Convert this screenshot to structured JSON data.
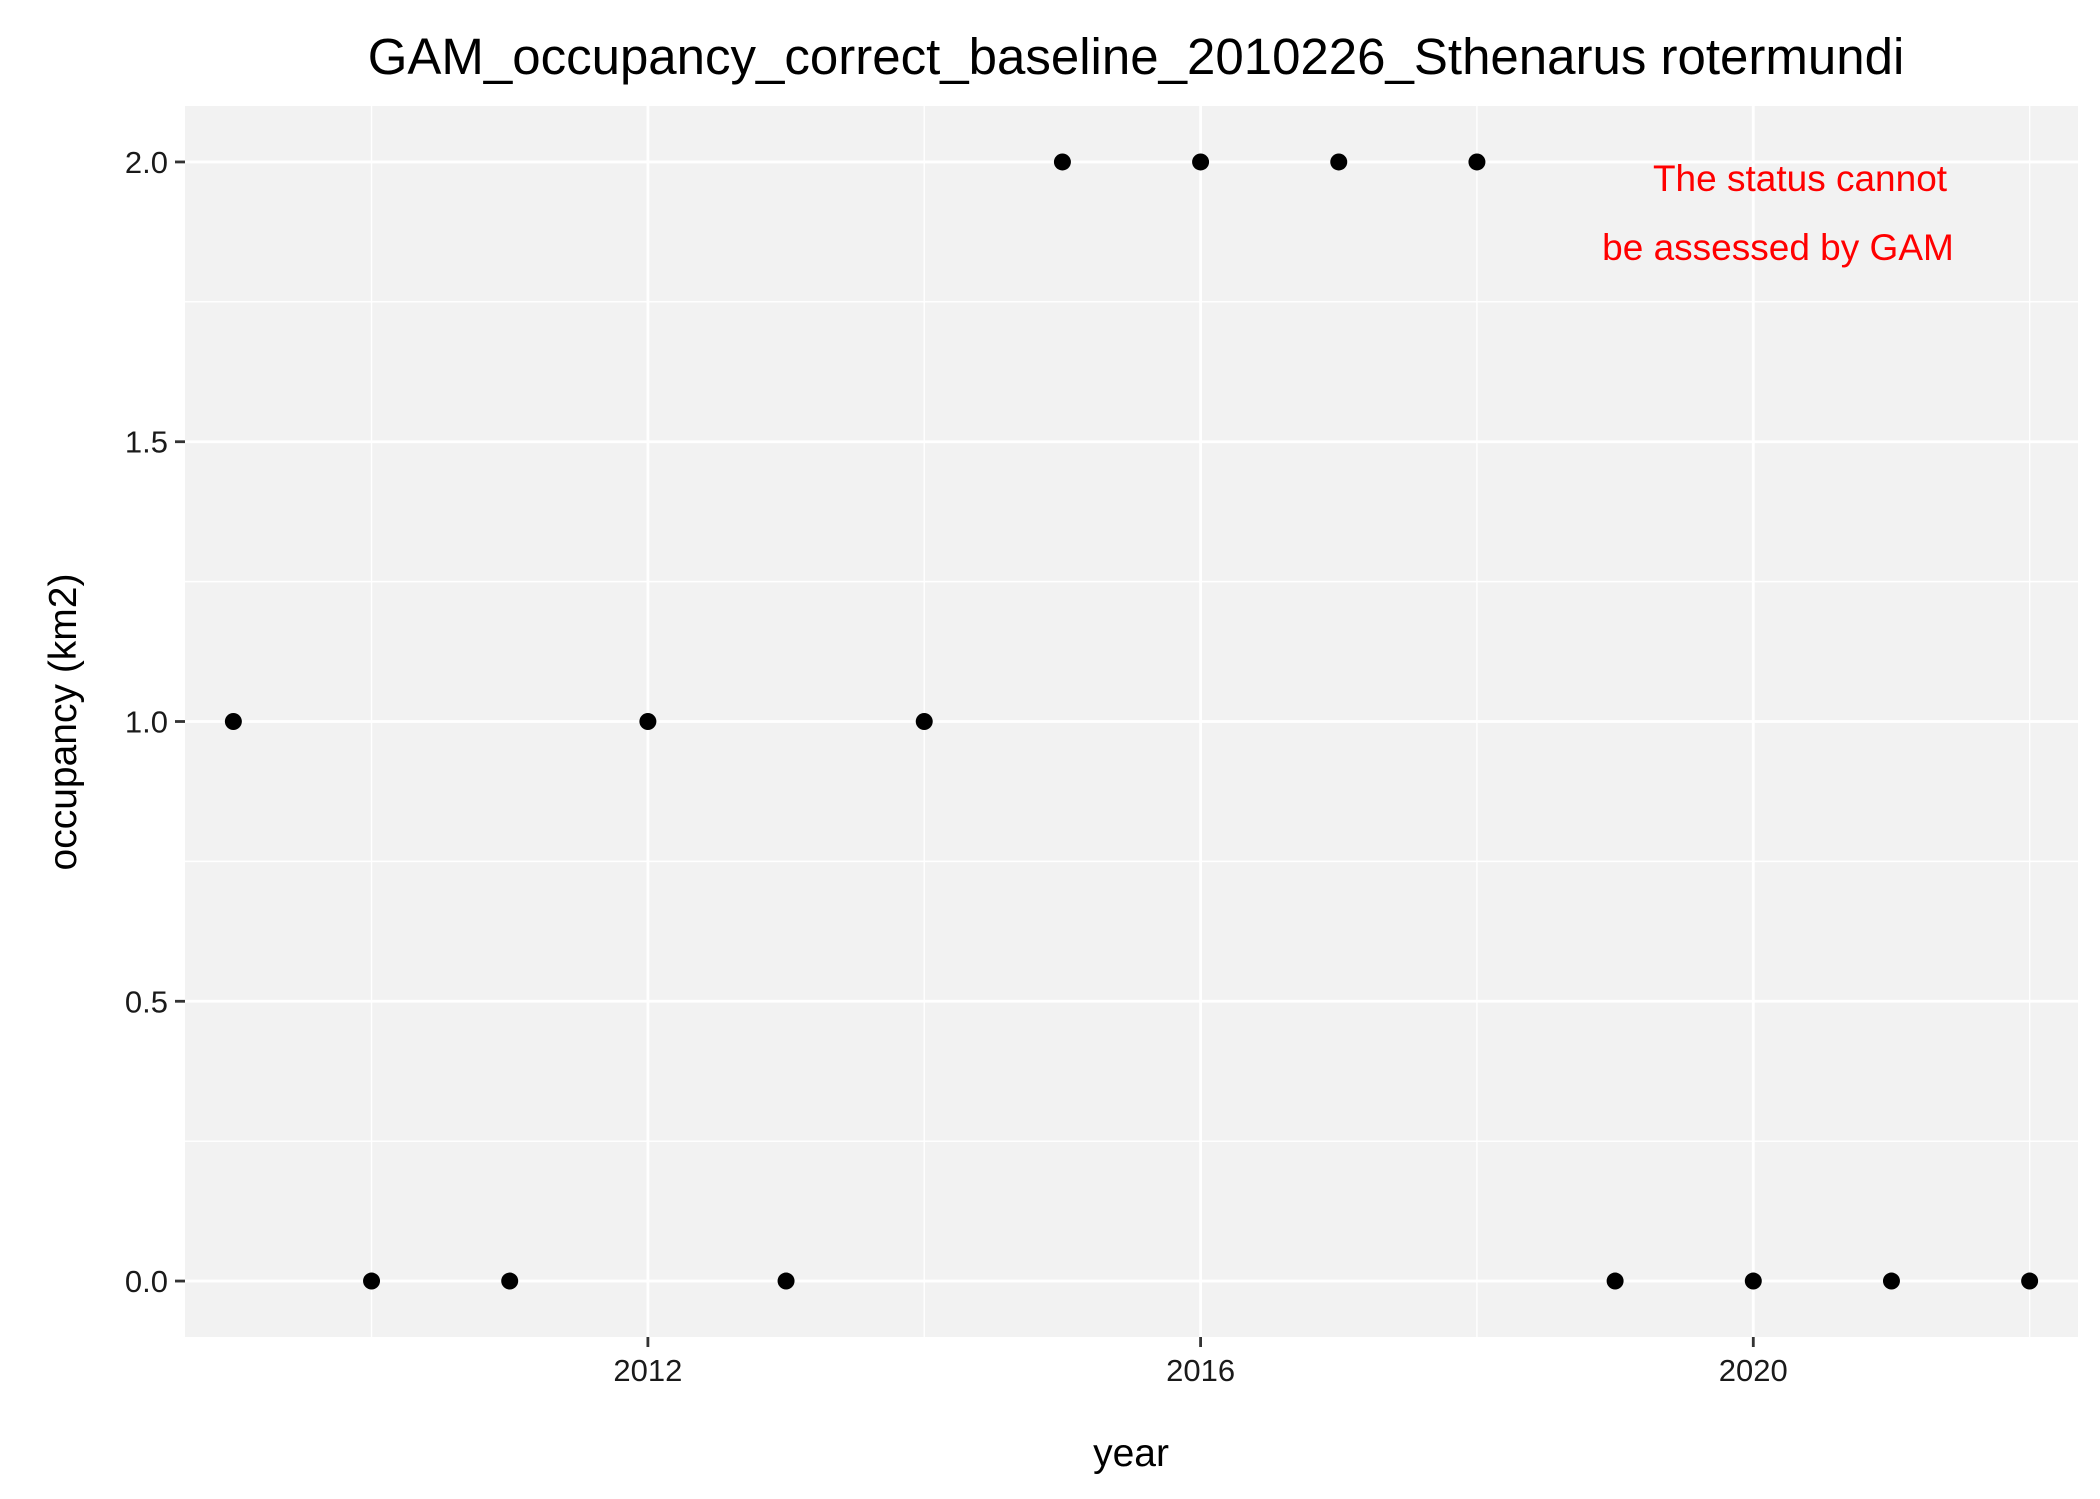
{
  "chart_data": {
    "type": "scatter",
    "title": "GAM_occupancy_correct_baseline_2010226_Sthenarus rotermundi",
    "xlabel": "year",
    "ylabel": "occupancy (km2)",
    "xlim": [
      2008.65,
      2022.35
    ],
    "ylim": [
      -0.1,
      2.1
    ],
    "x_ticks": [
      2012,
      2016,
      2020
    ],
    "y_ticks": [
      0.0,
      0.5,
      1.0,
      1.5,
      2.0
    ],
    "x_tick_labels": [
      "2012",
      "2016",
      "2020"
    ],
    "y_tick_labels": [
      "0.0",
      "0.5",
      "1.0",
      "1.5",
      "2.0"
    ],
    "grid": true,
    "legend": "none",
    "colors": {
      "panel": "#f2f2f2",
      "grid": "#ffffff",
      "point": "#000000",
      "annotation": "#ff0000"
    },
    "points": [
      {
        "x": 2009,
        "y": 1
      },
      {
        "x": 2010,
        "y": 0
      },
      {
        "x": 2011,
        "y": 0
      },
      {
        "x": 2012,
        "y": 1
      },
      {
        "x": 2013,
        "y": 0
      },
      {
        "x": 2014,
        "y": 1
      },
      {
        "x": 2015,
        "y": 2
      },
      {
        "x": 2016,
        "y": 2
      },
      {
        "x": 2017,
        "y": 2
      },
      {
        "x": 2018,
        "y": 2
      },
      {
        "x": 2019,
        "y": 0
      },
      {
        "x": 2020,
        "y": 0
      },
      {
        "x": 2021,
        "y": 0
      },
      {
        "x": 2022,
        "y": 0
      }
    ],
    "annotation": {
      "lines": [
        "The status cannot",
        "be assessed by GAM"
      ],
      "position": "top-right"
    }
  }
}
